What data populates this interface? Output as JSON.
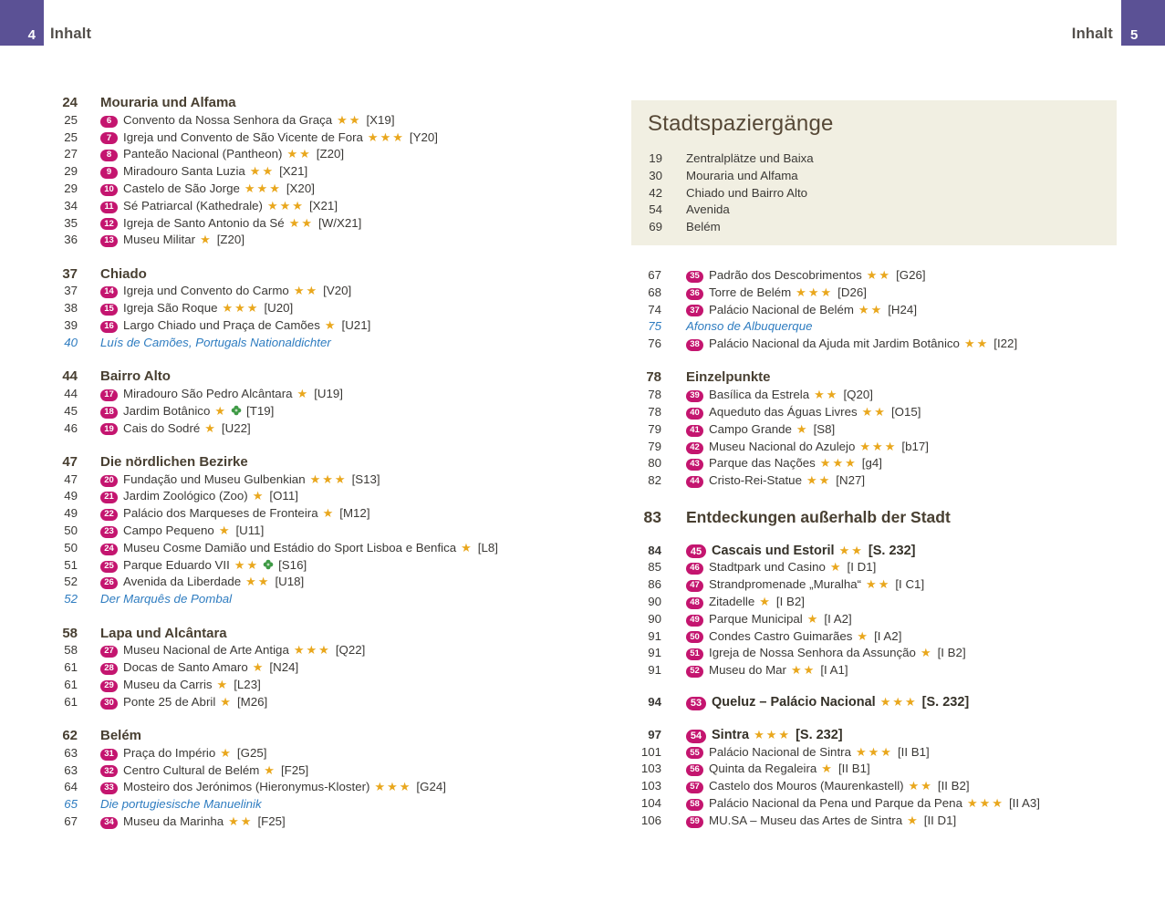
{
  "page": {
    "left_tab": {
      "page_number": "4",
      "header": "Inhalt"
    },
    "right_tab": {
      "page_number": "5",
      "header": "Inhalt"
    }
  },
  "colors": {
    "accent_purple": "#5b5195",
    "badge_magenta": "#c4156f",
    "star_gold": "#e9a71d",
    "note_blue": "#2e7cc0",
    "heading_brown": "#483f31",
    "text_dark": "#3b3936",
    "box_beige": "#f1efe2",
    "box_title_brown": "#564836",
    "park_green": "#3e9a45"
  },
  "left_column": {
    "sections": [
      {
        "page": "24",
        "title": "Mouraria und Alfama",
        "entries": [
          {
            "page": "25",
            "num": "6",
            "text": "Convento da Nossa Senhora da Graça",
            "stars": 2,
            "ref": "[X19]"
          },
          {
            "page": "25",
            "num": "7",
            "text": "Igreja und Convento de São Vicente de Fora",
            "stars": 3,
            "ref": "[Y20]"
          },
          {
            "page": "27",
            "num": "8",
            "text": "Panteão Nacional (Pantheon)",
            "stars": 2,
            "ref": "[Z20]"
          },
          {
            "page": "29",
            "num": "9",
            "text": "Miradouro Santa Luzia",
            "stars": 2,
            "ref": "[X21]"
          },
          {
            "page": "29",
            "num": "10",
            "text": "Castelo de São Jorge",
            "stars": 3,
            "ref": "[X20]"
          },
          {
            "page": "34",
            "num": "11",
            "text": "Sé Patriarcal (Kathedrale)",
            "stars": 3,
            "ref": "[X21]"
          },
          {
            "page": "35",
            "num": "12",
            "text": "Igreja de Santo Antonio da Sé",
            "stars": 2,
            "ref": "[W/X21]"
          },
          {
            "page": "36",
            "num": "13",
            "text": "Museu Militar",
            "stars": 1,
            "ref": "[Z20]"
          }
        ]
      },
      {
        "page": "37",
        "title": "Chiado",
        "entries": [
          {
            "page": "37",
            "num": "14",
            "text": "Igreja und Convento do Carmo",
            "stars": 2,
            "ref": "[V20]"
          },
          {
            "page": "38",
            "num": "15",
            "text": "Igreja São Roque",
            "stars": 3,
            "ref": "[U20]"
          },
          {
            "page": "39",
            "num": "16",
            "text": "Largo Chiado und Praça de Camões",
            "stars": 1,
            "ref": "[U21]"
          },
          {
            "note": true,
            "page": "40",
            "text": "Luís de Camões, Portugals Nationaldichter"
          }
        ]
      },
      {
        "page": "44",
        "title": "Bairro Alto",
        "entries": [
          {
            "page": "44",
            "num": "17",
            "text": "Miradouro São Pedro Alcântara",
            "stars": 1,
            "ref": "[U19]"
          },
          {
            "page": "45",
            "num": "18",
            "text": "Jardim Botânico",
            "stars": 1,
            "park_icon": true,
            "ref": "[T19]"
          },
          {
            "page": "46",
            "num": "19",
            "text": "Cais do Sodré",
            "stars": 1,
            "ref": "[U22]"
          }
        ]
      },
      {
        "page": "47",
        "title": "Die nördlichen Bezirke",
        "entries": [
          {
            "page": "47",
            "num": "20",
            "text": "Fundação und Museu Gulbenkian",
            "stars": 3,
            "ref": "[S13]"
          },
          {
            "page": "49",
            "num": "21",
            "text": "Jardim Zoológico (Zoo)",
            "stars": 1,
            "ref": "[O11]"
          },
          {
            "page": "49",
            "num": "22",
            "text": "Palácio dos Marqueses de Fronteira",
            "stars": 1,
            "ref": "[M12]"
          },
          {
            "page": "50",
            "num": "23",
            "text": "Campo Pequeno",
            "stars": 1,
            "ref": "[U11]"
          },
          {
            "page": "50",
            "num": "24",
            "text": "Museu Cosme Damião und Estádio do Sport Lisboa e Benfica",
            "stars": 1,
            "ref": "[L8]"
          },
          {
            "page": "51",
            "num": "25",
            "text": "Parque Eduardo VII",
            "stars": 2,
            "park_icon": true,
            "ref": "[S16]"
          },
          {
            "page": "52",
            "num": "26",
            "text": "Avenida da Liberdade",
            "stars": 2,
            "ref": "[U18]"
          },
          {
            "note": true,
            "page": "52",
            "text": "Der Marquês de Pombal"
          }
        ]
      },
      {
        "page": "58",
        "title": "Lapa und Alcântara",
        "entries": [
          {
            "page": "58",
            "num": "27",
            "text": "Museu Nacional de Arte Antiga",
            "stars": 3,
            "ref": "[Q22]"
          },
          {
            "page": "61",
            "num": "28",
            "text": "Docas de Santo Amaro",
            "stars": 1,
            "ref": "[N24]"
          },
          {
            "page": "61",
            "num": "29",
            "text": "Museu da Carris",
            "stars": 1,
            "ref": "[L23]"
          },
          {
            "page": "61",
            "num": "30",
            "text": "Ponte 25 de Abril",
            "stars": 1,
            "ref": "[M26]"
          }
        ]
      },
      {
        "page": "62",
        "title": "Belém",
        "entries": [
          {
            "page": "63",
            "num": "31",
            "text": "Praça do Império",
            "stars": 1,
            "ref": "[G25]"
          },
          {
            "page": "63",
            "num": "32",
            "text": "Centro Cultural de Belém",
            "stars": 1,
            "ref": "[F25]"
          },
          {
            "page": "64",
            "num": "33",
            "text": "Mosteiro dos Jerónimos (Hieronymus-Kloster)",
            "stars": 3,
            "ref": "[G24]"
          },
          {
            "note": true,
            "page": "65",
            "text": "Die portugiesische Manuelinik"
          },
          {
            "page": "67",
            "num": "34",
            "text": "Museu da Marinha",
            "stars": 2,
            "ref": "[F25]"
          }
        ]
      }
    ]
  },
  "right_column": {
    "walks_box": {
      "title": "Stadtspaziergänge",
      "items": [
        {
          "page": "19",
          "label": "Zentralplätze und Baixa"
        },
        {
          "page": "30",
          "label": "Mouraria und Alfama"
        },
        {
          "page": "42",
          "label": "Chiado und Bairro Alto"
        },
        {
          "page": "54",
          "label": "Avenida"
        },
        {
          "page": "69",
          "label": "Belém"
        }
      ]
    },
    "sections": [
      {
        "entries": [
          {
            "page": "67",
            "num": "35",
            "text": "Padrão dos Descobrimentos",
            "stars": 2,
            "ref": "[G26]"
          },
          {
            "page": "68",
            "num": "36",
            "text": "Torre de Belém",
            "stars": 3,
            "ref": "[D26]"
          },
          {
            "page": "74",
            "num": "37",
            "text": "Palácio Nacional de Belém",
            "stars": 2,
            "ref": "[H24]"
          },
          {
            "note": true,
            "page": "75",
            "text": "Afonso de Albuquerque"
          },
          {
            "page": "76",
            "num": "38",
            "text": "Palácio Nacional da Ajuda mit Jardim Botânico",
            "stars": 2,
            "ref": "[I22]"
          }
        ]
      },
      {
        "page": "78",
        "title": "Einzelpunkte",
        "entries": [
          {
            "page": "78",
            "num": "39",
            "text": "Basílica da Estrela",
            "stars": 2,
            "ref": "[Q20]"
          },
          {
            "page": "78",
            "num": "40",
            "text": "Aqueduto das Águas Livres",
            "stars": 2,
            "ref": "[O15]"
          },
          {
            "page": "79",
            "num": "41",
            "text": "Campo Grande",
            "stars": 1,
            "ref": "[S8]"
          },
          {
            "page": "79",
            "num": "42",
            "text": "Museu Nacional do Azulejo",
            "stars": 3,
            "ref": "[b17]"
          },
          {
            "page": "80",
            "num": "43",
            "text": "Parque das Nações",
            "stars": 3,
            "ref": "[g4]"
          },
          {
            "page": "82",
            "num": "44",
            "text": "Cristo-Rei-Statue",
            "stars": 2,
            "ref": "[N27]"
          }
        ]
      },
      {
        "page": "83",
        "title": "Entdeckungen außerhalb der Stadt",
        "big": true,
        "entries": [
          {
            "bold": true,
            "page": "84",
            "num": "45",
            "text": "Cascais und Estoril",
            "stars": 2,
            "ref": "[S. 232]"
          },
          {
            "page": "85",
            "num": "46",
            "text": "Stadtpark und Casino",
            "stars": 1,
            "ref": "[I D1]"
          },
          {
            "page": "86",
            "num": "47",
            "text": "Strandpromenade „Muralha“",
            "stars": 2,
            "ref": "[I C1]"
          },
          {
            "page": "90",
            "num": "48",
            "text": "Zitadelle",
            "stars": 1,
            "ref": "[I B2]"
          },
          {
            "page": "90",
            "num": "49",
            "text": "Parque Municipal",
            "stars": 1,
            "ref": "[I A2]"
          },
          {
            "page": "91",
            "num": "50",
            "text": "Condes Castro Guimarães",
            "stars": 1,
            "ref": "[I A2]"
          },
          {
            "page": "91",
            "num": "51",
            "text": "Igreja de Nossa Senhora da Assunção",
            "stars": 1,
            "ref": "[I B2]"
          },
          {
            "page": "91",
            "num": "52",
            "text": "Museu do Mar",
            "stars": 2,
            "ref": "[I A1]"
          },
          {
            "bold": true,
            "page": "94",
            "num": "53",
            "text": "Queluz – Palácio Nacional",
            "stars": 3,
            "ref": "[S. 232]"
          },
          {
            "bold": true,
            "page": "97",
            "num": "54",
            "text": "Sintra",
            "stars": 3,
            "ref": "[S. 232]"
          },
          {
            "page": "101",
            "num": "55",
            "text": "Palácio Nacional de Sintra",
            "stars": 3,
            "ref": "[II B1]"
          },
          {
            "page": "103",
            "num": "56",
            "text": "Quinta da Regaleira",
            "stars": 1,
            "ref": "[II B1]"
          },
          {
            "page": "103",
            "num": "57",
            "text": "Castelo dos Mouros (Maurenkastell)",
            "stars": 2,
            "ref": "[II B2]"
          },
          {
            "page": "104",
            "num": "58",
            "text": "Palácio Nacional da Pena und Parque da Pena",
            "stars": 3,
            "ref": "[II A3]"
          },
          {
            "page": "106",
            "num": "59",
            "text": "MU.SA – Museu das Artes de Sintra",
            "stars": 1,
            "ref": "[II D1]"
          }
        ]
      }
    ]
  }
}
